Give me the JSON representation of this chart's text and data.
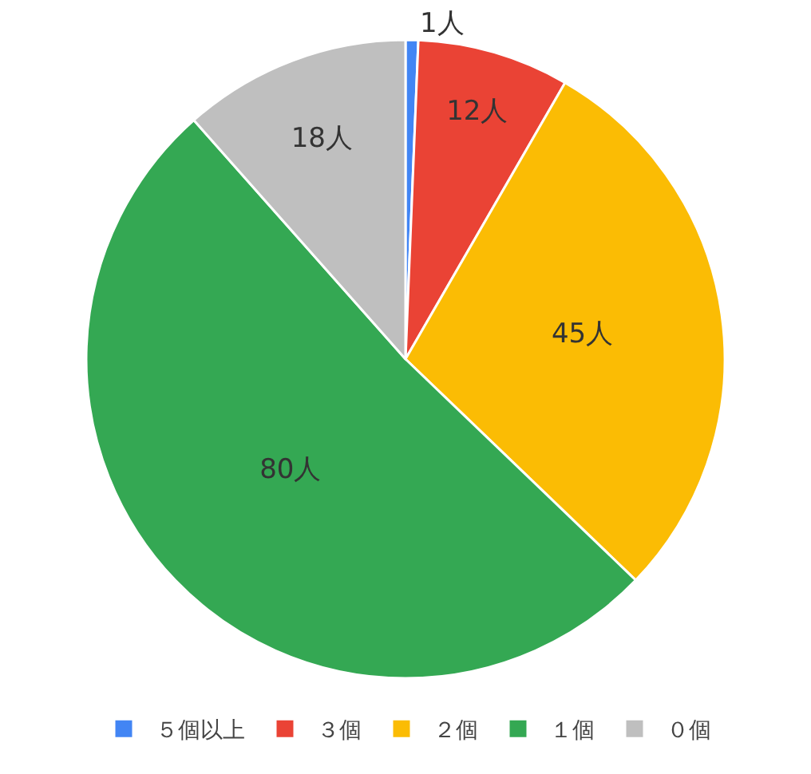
{
  "chart_data": {
    "type": "pie",
    "categories": [
      "５個以上",
      "３個",
      "２個",
      "１個",
      "０個"
    ],
    "values": [
      1,
      12,
      45,
      80,
      18
    ],
    "colors": [
      "#4285f4",
      "#ea4335",
      "#fbbc04",
      "#34a853",
      "#bfbfbf"
    ],
    "value_labels": [
      "1人",
      "12人",
      "45人",
      "80人",
      "18人"
    ],
    "legend": "bottom"
  }
}
